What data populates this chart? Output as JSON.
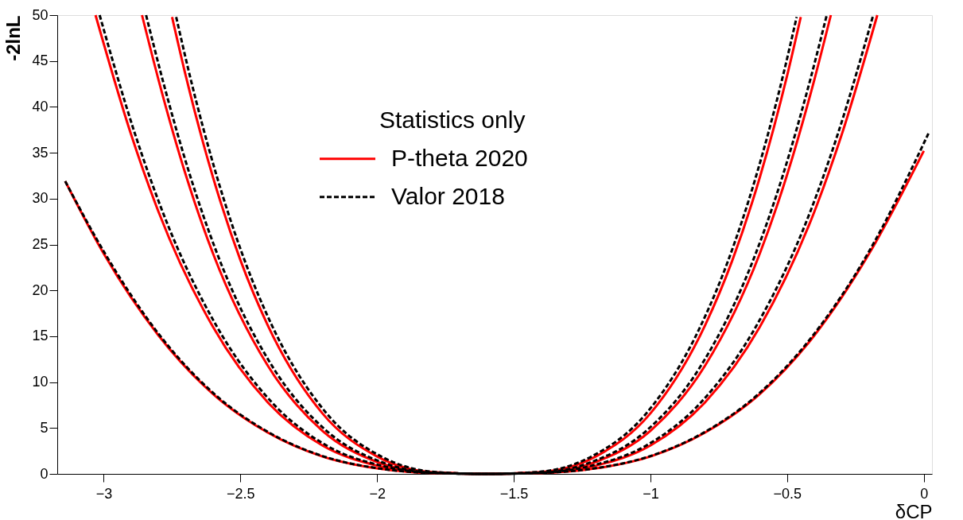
{
  "chart_data": {
    "type": "line",
    "xlabel": "δCP",
    "ylabel": "-2lnL",
    "legend_title": "Statistics only",
    "legend": "top",
    "xlim": [
      -3.17,
      0.03
    ],
    "ylim": [
      0,
      50
    ],
    "xticks": [
      -3,
      -2.5,
      -2,
      -1.5,
      -1,
      -0.5,
      0
    ],
    "yticks": [
      0,
      5,
      10,
      15,
      20,
      25,
      30,
      35,
      40,
      45,
      50
    ],
    "grid": false,
    "series": [
      {
        "name": "P-theta 2020",
        "color": "#ff0000",
        "line_style": "solid",
        "x": [
          -3.141,
          -3.0,
          -2.8,
          -2.6,
          -2.4,
          -2.2,
          -2.0,
          -1.8,
          -1.6,
          -1.4,
          -1.2,
          -1.0,
          -0.8,
          -0.6,
          -0.4,
          -0.2,
          0.0
        ],
        "values": [
          31.9,
          24.0,
          15.1,
          8.7,
          4.5,
          1.9,
          0.6,
          0.1,
          0,
          0.1,
          0.6,
          1.9,
          4.5,
          8.7,
          15.1,
          24.0,
          35.2
        ]
      },
      {
        "color": "#ff0000",
        "line_style": "solid",
        "x": [
          -3.03,
          -2.9,
          -2.8,
          -2.6,
          -2.4,
          -2.2,
          -2.0,
          -1.8,
          -1.6,
          -1.4,
          -1.2,
          -1.0,
          -0.8,
          -0.6,
          -0.4,
          -0.3,
          -0.17
        ],
        "values": [
          50,
          37.0,
          28.6,
          16.0,
          7.8,
          3.1,
          0.9,
          0.1,
          0,
          0.1,
          0.9,
          3.1,
          7.8,
          16.0,
          28.6,
          37.0,
          50
        ]
      },
      {
        "color": "#ff0000",
        "line_style": "solid",
        "x": [
          -2.86,
          -2.8,
          -2.7,
          -2.6,
          -2.4,
          -2.2,
          -2.0,
          -1.8,
          -1.6,
          -1.4,
          -1.2,
          -1.0,
          -0.8,
          -0.6,
          -0.5,
          -0.4,
          -0.34
        ],
        "values": [
          50,
          43.0,
          32.6,
          24.0,
          11.8,
          4.7,
          1.3,
          0.1,
          0,
          0.1,
          1.3,
          4.7,
          11.8,
          24.0,
          32.6,
          43.0,
          50
        ]
      },
      {
        "color": "#ff0000",
        "line_style": "solid",
        "x": [
          -2.75,
          -2.7,
          -2.6,
          -2.5,
          -2.4,
          -2.2,
          -2.0,
          -1.8,
          -1.6,
          -1.4,
          -1.2,
          -1.0,
          -0.8,
          -0.7,
          -0.6,
          -0.5,
          -0.45
        ],
        "values": [
          49.8,
          43.4,
          32.3,
          23.3,
          16.2,
          6.6,
          1.9,
          0.2,
          0,
          0.2,
          1.9,
          6.6,
          16.2,
          23.3,
          32.3,
          43.4,
          49.8
        ]
      },
      {
        "name": "Valor 2018",
        "color": "#000000",
        "line_style": "dashed",
        "x": [
          -3.141,
          -2.995,
          -2.795,
          -2.595,
          -2.395,
          -2.195,
          -1.995,
          -1.795,
          -1.6,
          -1.405,
          -1.205,
          -1.005,
          -0.805,
          -0.605,
          -0.405,
          -0.205,
          0.017
        ],
        "values": [
          31.9,
          24.0,
          15.1,
          8.7,
          4.5,
          1.9,
          0.6,
          0.1,
          0,
          0.1,
          0.6,
          1.9,
          4.5,
          8.7,
          15.1,
          24.0,
          37.1
        ]
      },
      {
        "color": "#000000",
        "line_style": "dashed",
        "x": [
          -3.015,
          -2.885,
          -2.785,
          -2.585,
          -2.385,
          -2.185,
          -1.985,
          -1.785,
          -1.6,
          -1.415,
          -1.215,
          -1.015,
          -0.815,
          -0.615,
          -0.415,
          -0.315,
          -0.185
        ],
        "values": [
          50,
          37.0,
          28.6,
          16.0,
          7.8,
          3.1,
          0.9,
          0.1,
          0,
          0.1,
          0.9,
          3.1,
          7.8,
          16.0,
          28.6,
          37.0,
          50
        ]
      },
      {
        "color": "#000000",
        "line_style": "dashed",
        "x": [
          -2.845,
          -2.785,
          -2.685,
          -2.585,
          -2.385,
          -2.185,
          -1.985,
          -1.785,
          -1.6,
          -1.415,
          -1.215,
          -1.015,
          -0.815,
          -0.615,
          -0.515,
          -0.415,
          -0.355
        ],
        "values": [
          50,
          43.0,
          32.6,
          24.0,
          11.8,
          4.7,
          1.3,
          0.1,
          0,
          0.1,
          1.3,
          4.7,
          11.8,
          24.0,
          32.6,
          43.0,
          50
        ]
      },
      {
        "color": "#000000",
        "line_style": "dashed",
        "x": [
          -2.735,
          -2.685,
          -2.585,
          -2.485,
          -2.385,
          -2.185,
          -1.985,
          -1.785,
          -1.6,
          -1.415,
          -1.215,
          -1.015,
          -0.815,
          -0.715,
          -0.615,
          -0.515,
          -0.465
        ],
        "values": [
          49.8,
          43.4,
          32.3,
          23.3,
          16.2,
          6.6,
          1.9,
          0.2,
          0,
          0.2,
          1.9,
          6.6,
          16.2,
          23.3,
          32.3,
          43.4,
          49.8
        ]
      }
    ]
  }
}
